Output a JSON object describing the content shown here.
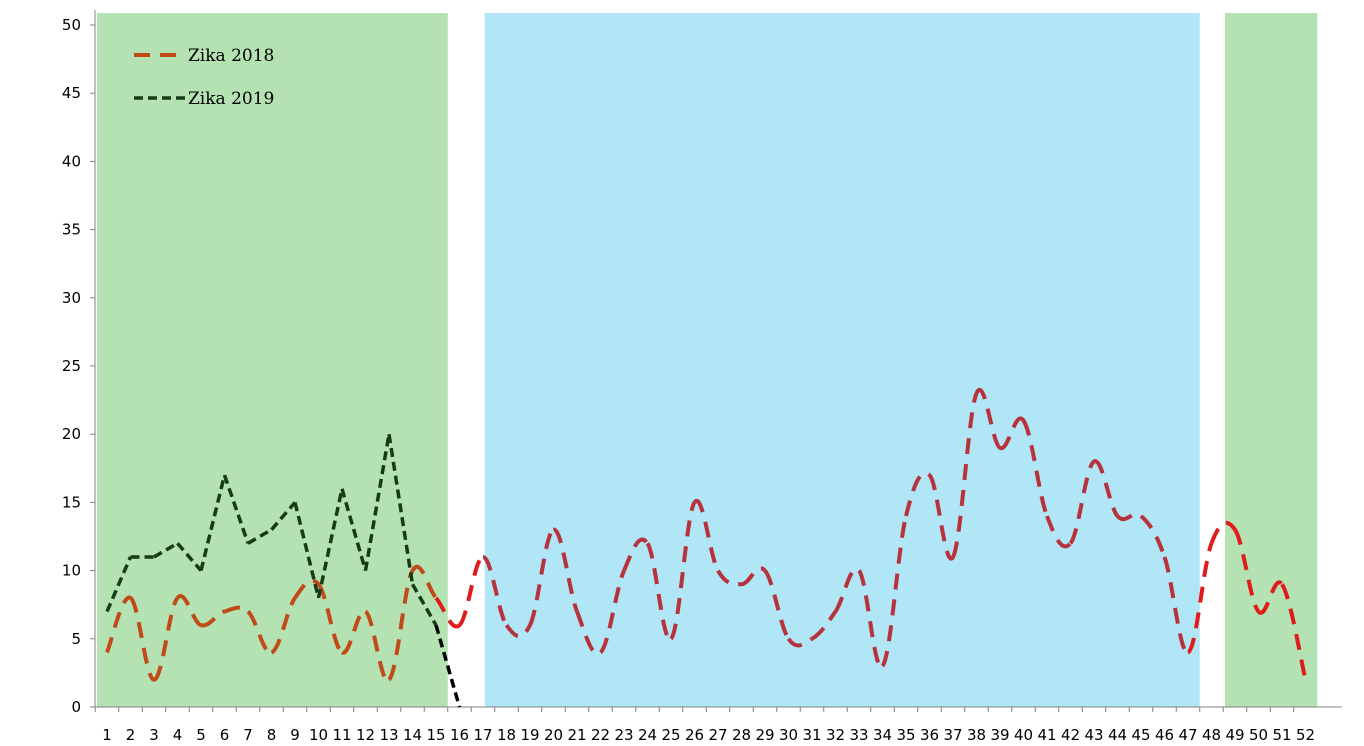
{
  "chart_data": {
    "type": "line",
    "title": "",
    "xlabel": "",
    "ylabel": "",
    "x": [
      1,
      2,
      3,
      4,
      5,
      6,
      7,
      8,
      9,
      10,
      11,
      12,
      13,
      14,
      15,
      16,
      17,
      18,
      19,
      20,
      21,
      22,
      23,
      24,
      25,
      26,
      27,
      28,
      29,
      30,
      31,
      32,
      33,
      34,
      35,
      36,
      37,
      38,
      39,
      40,
      41,
      42,
      43,
      44,
      45,
      46,
      47,
      48,
      49,
      50,
      51,
      52
    ],
    "ylim": [
      0,
      50
    ],
    "yticks": [
      0,
      5,
      10,
      15,
      20,
      25,
      30,
      35,
      40,
      45,
      50
    ],
    "grid": false,
    "legend_position": "top-left",
    "series": [
      {
        "name": "Zika 2018",
        "style": "dashed",
        "x": [
          1,
          2,
          3,
          4,
          5,
          6,
          7,
          8,
          9,
          10,
          11,
          12,
          13,
          14,
          15,
          16,
          17,
          18,
          19,
          20,
          21,
          22,
          23,
          24,
          25,
          26,
          27,
          28,
          29,
          30,
          31,
          32,
          33,
          34,
          35,
          36,
          37,
          38,
          39,
          40,
          41,
          42,
          43,
          44,
          45,
          46,
          47,
          48,
          49,
          50,
          51,
          52
        ],
        "values": [
          4,
          8,
          2,
          8,
          6,
          7,
          7,
          4,
          8,
          9,
          4,
          7,
          2,
          10,
          8,
          6,
          11,
          6,
          6,
          13,
          7,
          4,
          10,
          12,
          5,
          15,
          10,
          9,
          10,
          5,
          5,
          7,
          10,
          3,
          14,
          17,
          11,
          23,
          19,
          21,
          14,
          12,
          18,
          14,
          14,
          11,
          4,
          12,
          13,
          7,
          9,
          2
        ]
      },
      {
        "name": "Zika 2019",
        "style": "dashed",
        "x": [
          1,
          2,
          3,
          4,
          5,
          6,
          7,
          8,
          9,
          10,
          11,
          12,
          13,
          14,
          15,
          16
        ],
        "values": [
          7,
          11,
          11,
          12,
          10,
          17,
          12,
          13,
          15,
          8,
          16,
          10,
          20,
          9,
          6,
          0
        ]
      }
    ],
    "shaded_regions": [
      {
        "x_start": 1,
        "x_end": 15.5,
        "color": "#b5e2b2"
      },
      {
        "x_start": 17.5,
        "x_end": 47.5,
        "color": "#b1e6f7"
      },
      {
        "x_start": 49,
        "x_end": 52.5,
        "color": "#b5e2b2"
      }
    ],
    "colors": {
      "zika_2018_green_segment": "#c04a18",
      "zika_2018_white_segment": "#e01b1b",
      "zika_2018_blue_segment": "#b8323e",
      "zika_2019": "#153d15",
      "zika_2019_white_segment": "#000000",
      "axis": "#808080"
    }
  }
}
